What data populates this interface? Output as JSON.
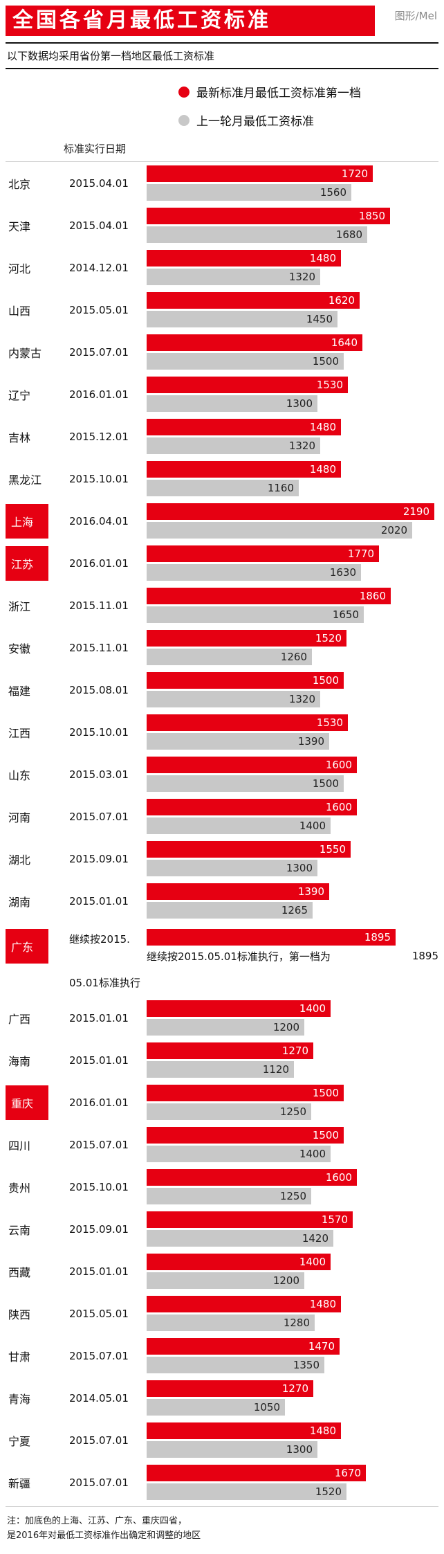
{
  "header": {
    "title": "全国各省月最低工资标准",
    "credit": "图形/Mel",
    "subtitle": "以下数据均采用省份第一档地区最低工资标准"
  },
  "legend": {
    "new": {
      "label": "最新标准月最低工资标准第一档",
      "color": "#e60012"
    },
    "old": {
      "label": "上一轮月最低工资标准",
      "color": "#c8c8c8"
    }
  },
  "columns": {
    "date_header": "标准实行日期"
  },
  "chart_data": {
    "type": "bar",
    "orientation": "horizontal",
    "value_max": 2190,
    "series": [
      "最新标准月最低工资标准第一档",
      "上一轮月最低工资标准"
    ],
    "rows": [
      {
        "province": "北京",
        "date": "2015.04.01",
        "new": 1720,
        "old": 1560,
        "highlight": false
      },
      {
        "province": "天津",
        "date": "2015.04.01",
        "new": 1850,
        "old": 1680,
        "highlight": false
      },
      {
        "province": "河北",
        "date": "2014.12.01",
        "new": 1480,
        "old": 1320,
        "highlight": false
      },
      {
        "province": "山西",
        "date": "2015.05.01",
        "new": 1620,
        "old": 1450,
        "highlight": false
      },
      {
        "province": "内蒙古",
        "date": "2015.07.01",
        "new": 1640,
        "old": 1500,
        "highlight": false
      },
      {
        "province": "辽宁",
        "date": "2016.01.01",
        "new": 1530,
        "old": 1300,
        "highlight": false
      },
      {
        "province": "吉林",
        "date": "2015.12.01",
        "new": 1480,
        "old": 1320,
        "highlight": false
      },
      {
        "province": "黑龙江",
        "date": "2015.10.01",
        "new": 1480,
        "old": 1160,
        "highlight": false
      },
      {
        "province": "上海",
        "date": "2016.04.01",
        "new": 2190,
        "old": 2020,
        "highlight": true
      },
      {
        "province": "江苏",
        "date": "2016.01.01",
        "new": 1770,
        "old": 1630,
        "highlight": true
      },
      {
        "province": "浙江",
        "date": "2015.11.01",
        "new": 1860,
        "old": 1650,
        "highlight": false
      },
      {
        "province": "安徽",
        "date": "2015.11.01",
        "new": 1520,
        "old": 1260,
        "highlight": false
      },
      {
        "province": "福建",
        "date": "2015.08.01",
        "new": 1500,
        "old": 1320,
        "highlight": false
      },
      {
        "province": "江西",
        "date": "2015.10.01",
        "new": 1530,
        "old": 1390,
        "highlight": false
      },
      {
        "province": "山东",
        "date": "2015.03.01",
        "new": 1600,
        "old": 1500,
        "highlight": false
      },
      {
        "province": "河南",
        "date": "2015.07.01",
        "new": 1600,
        "old": 1400,
        "highlight": false
      },
      {
        "province": "湖北",
        "date": "2015.09.01",
        "new": 1550,
        "old": 1300,
        "highlight": false
      },
      {
        "province": "湖南",
        "date": "2015.01.01",
        "new": 1390,
        "old": 1265,
        "highlight": false
      },
      {
        "province": "广东",
        "date": "继续按2015.",
        "date_line2": "05.01标准执行",
        "new": 1895,
        "old": null,
        "highlight": true,
        "note": "继续按2015.05.01标准执行，第一档为",
        "note_value": "1895"
      },
      {
        "province": "广西",
        "date": "2015.01.01",
        "new": 1400,
        "old": 1200,
        "highlight": false
      },
      {
        "province": "海南",
        "date": "2015.01.01",
        "new": 1270,
        "old": 1120,
        "highlight": false
      },
      {
        "province": "重庆",
        "date": "2016.01.01",
        "new": 1500,
        "old": 1250,
        "highlight": true
      },
      {
        "province": "四川",
        "date": "2015.07.01",
        "new": 1500,
        "old": 1400,
        "highlight": false
      },
      {
        "province": "贵州",
        "date": "2015.10.01",
        "new": 1600,
        "old": 1250,
        "highlight": false
      },
      {
        "province": "云南",
        "date": "2015.09.01",
        "new": 1570,
        "old": 1420,
        "highlight": false
      },
      {
        "province": "西藏",
        "date": "2015.01.01",
        "new": 1400,
        "old": 1200,
        "highlight": false
      },
      {
        "province": "陕西",
        "date": "2015.05.01",
        "new": 1480,
        "old": 1280,
        "highlight": false
      },
      {
        "province": "甘肃",
        "date": "2015.07.01",
        "new": 1470,
        "old": 1350,
        "highlight": false
      },
      {
        "province": "青海",
        "date": "2014.05.01",
        "new": 1270,
        "old": 1050,
        "highlight": false
      },
      {
        "province": "宁夏",
        "date": "2015.07.01",
        "new": 1480,
        "old": 1300,
        "highlight": false
      },
      {
        "province": "新疆",
        "date": "2015.07.01",
        "new": 1670,
        "old": 1520,
        "highlight": false
      }
    ]
  },
  "footer": {
    "line1": "注：加底色的上海、江苏、广东、重庆四省，",
    "line2": "是2016年对最低工资标准作出确定和调整的地区"
  },
  "colors": {
    "red": "#e60012",
    "gray_bar": "#c8c8c8"
  }
}
